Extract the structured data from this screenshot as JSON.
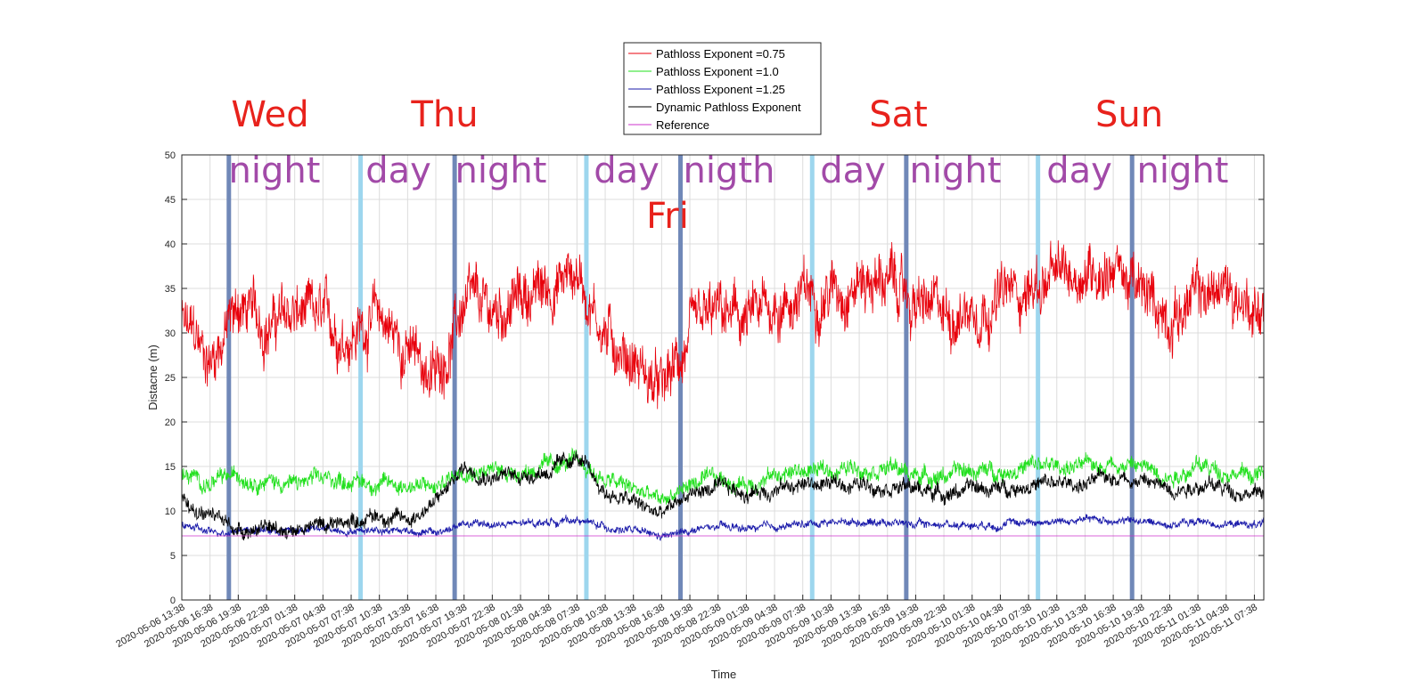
{
  "chart_data": {
    "type": "line",
    "xlabel": "Time",
    "ylabel": "Distacne (m)",
    "ylim": [
      0,
      50
    ],
    "yticks": [
      0,
      5,
      10,
      15,
      20,
      25,
      30,
      35,
      40,
      45,
      50
    ],
    "grid": true,
    "legend_placement": "top-center",
    "x_tick_labels": [
      "2020-05-06  13:38",
      "2020-05-06  16:38",
      "2020-05-06  19:38",
      "2020-05-06  22:38",
      "2020-05-07  01:38",
      "2020-05-07  04:38",
      "2020-05-07  07:38",
      "2020-05-07  10:38",
      "2020-05-07  13:38",
      "2020-05-07  16:38",
      "2020-05-07  19:38",
      "2020-05-07  22:38",
      "2020-05-08  01:38",
      "2020-05-08  04:38",
      "2020-05-08  07:38",
      "2020-05-08  10:38",
      "2020-05-08  13:38",
      "2020-05-08  16:38",
      "2020-05-08  19:38",
      "2020-05-08  22:38",
      "2020-05-09  01:38",
      "2020-05-09  04:38",
      "2020-05-09  07:38",
      "2020-05-09  10:38",
      "2020-05-09  13:38",
      "2020-05-09  16:38",
      "2020-05-09  19:38",
      "2020-05-09  22:38",
      "2020-05-10  01:38",
      "2020-05-10  04:38",
      "2020-05-10  07:38",
      "2020-05-10  10:38",
      "2020-05-10  13:38",
      "2020-05-10  16:38",
      "2020-05-10  19:38",
      "2020-05-10  22:38",
      "2020-05-11  01:38",
      "2020-05-11  04:38",
      "2020-05-11  07:38"
    ],
    "x_hours_labels": [
      "2020-05-06  13:38",
      "2020-05-06  16:38",
      "2020-05-06  19:38",
      "2020-05-06  22:38",
      "2020-05-07  01:38",
      "2020-05-07  04:38",
      "2020-05-07  07:38",
      "2020-05-07  10:38",
      "2020-05-07  13:38",
      "2020-05-07  16:38",
      "2020-05-07  19:38",
      "2020-05-07  22:38",
      "2020-05-08  01:38",
      "2020-05-08  04:38",
      "2020-05-08  07:38",
      "2020-05-08  10:38",
      "2020-05-08  13:38",
      "2020-05-08  16:38",
      "2020-05-08  19:38",
      "2020-05-08  22:38",
      "2020-05-09  01:38",
      "2020-05-09  04:38",
      "2020-05-09  07:38",
      "2020-05-09  10:38",
      "2020-05-09  13:38",
      "2020-05-09  16:38",
      "2020-05-09  19:38",
      "2020-05-09  22:38",
      "2020-05-10  01:38",
      "2020-05-10  04:38",
      "2020-05-10  07:38",
      "2020-05-10  10:38",
      "2020-05-10  13:38",
      "2020-05-10  16:38",
      "2020-05-10  19:38",
      "2020-05-10  22:38",
      "2020-05-11  01:38",
      "2020-05-11  04:38",
      "2020-05-11  07:38"
    ],
    "x_range": [
      "2020-05-06 13:38",
      "2020-05-11 08:38"
    ],
    "series": [
      {
        "name": "Pathloss Exponent =0.75",
        "color": "#e8000b",
        "x": [
          "2020-05-06 13:38",
          "2020-05-06 16:38",
          "2020-05-06 19:38",
          "2020-05-06 22:38",
          "2020-05-07 01:38",
          "2020-05-07 04:38",
          "2020-05-07 07:38",
          "2020-05-07 10:38",
          "2020-05-07 13:38",
          "2020-05-07 16:38",
          "2020-05-07 19:38",
          "2020-05-07 22:38",
          "2020-05-08 01:38",
          "2020-05-08 04:38",
          "2020-05-08 07:38",
          "2020-05-08 10:38",
          "2020-05-08 13:38",
          "2020-05-08 16:38",
          "2020-05-08 19:38",
          "2020-05-08 22:38",
          "2020-05-09 01:38",
          "2020-05-09 04:38",
          "2020-05-09 07:38",
          "2020-05-09 10:38",
          "2020-05-09 13:38",
          "2020-05-09 16:38",
          "2020-05-09 19:38",
          "2020-05-09 22:38",
          "2020-05-10 01:38",
          "2020-05-10 04:38",
          "2020-05-10 07:38",
          "2020-05-10 10:38",
          "2020-05-10 13:38",
          "2020-05-10 16:38",
          "2020-05-10 19:38",
          "2020-05-10 22:38",
          "2020-05-11 01:38",
          "2020-05-11 04:38",
          "2020-05-11 07:38"
        ],
        "values": [
          31,
          27,
          33,
          31,
          32,
          31,
          30,
          32,
          28,
          25,
          33,
          32,
          34,
          35,
          37,
          30,
          27,
          23,
          29,
          32,
          31,
          33,
          34,
          35,
          36,
          36,
          33,
          32,
          33,
          34,
          35,
          36,
          37,
          38,
          34,
          32,
          34,
          35,
          33
        ]
      },
      {
        "name": "Pathloss Exponent =1.0",
        "color": "#22e01e",
        "x": [
          "2020-05-06 13:38",
          "2020-05-06 16:38",
          "2020-05-06 19:38",
          "2020-05-06 22:38",
          "2020-05-07 01:38",
          "2020-05-07 04:38",
          "2020-05-07 07:38",
          "2020-05-07 10:38",
          "2020-05-07 13:38",
          "2020-05-07 16:38",
          "2020-05-07 19:38",
          "2020-05-07 22:38",
          "2020-05-08 01:38",
          "2020-05-08 04:38",
          "2020-05-08 07:38",
          "2020-05-08 10:38",
          "2020-05-08 13:38",
          "2020-05-08 16:38",
          "2020-05-08 19:38",
          "2020-05-08 22:38",
          "2020-05-09 01:38",
          "2020-05-09 04:38",
          "2020-05-09 07:38",
          "2020-05-09 10:38",
          "2020-05-09 13:38",
          "2020-05-09 16:38",
          "2020-05-09 19:38",
          "2020-05-09 22:38",
          "2020-05-10 01:38",
          "2020-05-10 04:38",
          "2020-05-10 07:38",
          "2020-05-10 10:38",
          "2020-05-10 13:38",
          "2020-05-10 16:38",
          "2020-05-10 19:38",
          "2020-05-10 22:38",
          "2020-05-11 01:38",
          "2020-05-11 04:38",
          "2020-05-11 07:38"
        ],
        "values": [
          14,
          13,
          14,
          13.5,
          13,
          13.5,
          13.5,
          13,
          13,
          12.5,
          15,
          14.5,
          14.5,
          15,
          15.5,
          13.5,
          12.5,
          11,
          13,
          13.5,
          13,
          14,
          14.5,
          14.5,
          15,
          15,
          14,
          14,
          14.5,
          14.5,
          15,
          15,
          15,
          15.5,
          15,
          14,
          15,
          14.5,
          14
        ]
      },
      {
        "name": "Pathloss Exponent =1.25",
        "color": "#1a1aaa",
        "x": [
          "2020-05-06 13:38",
          "2020-05-06 16:38",
          "2020-05-06 19:38",
          "2020-05-06 22:38",
          "2020-05-07 01:38",
          "2020-05-07 04:38",
          "2020-05-07 07:38",
          "2020-05-07 10:38",
          "2020-05-07 13:38",
          "2020-05-07 16:38",
          "2020-05-07 19:38",
          "2020-05-07 22:38",
          "2020-05-08 01:38",
          "2020-05-08 04:38",
          "2020-05-08 07:38",
          "2020-05-08 10:38",
          "2020-05-08 13:38",
          "2020-05-08 16:38",
          "2020-05-08 19:38",
          "2020-05-08 22:38",
          "2020-05-09 01:38",
          "2020-05-09 04:38",
          "2020-05-09 07:38",
          "2020-05-09 10:38",
          "2020-05-09 13:38",
          "2020-05-09 16:38",
          "2020-05-09 19:38",
          "2020-05-09 22:38",
          "2020-05-10 01:38",
          "2020-05-10 04:38",
          "2020-05-10 07:38",
          "2020-05-10 10:38",
          "2020-05-10 13:38",
          "2020-05-10 16:38",
          "2020-05-10 19:38",
          "2020-05-10 22:38",
          "2020-05-11 01:38",
          "2020-05-11 04:38",
          "2020-05-11 07:38"
        ],
        "values": [
          8.5,
          7.5,
          8,
          7.8,
          7.8,
          8,
          7.8,
          8,
          7.8,
          7.5,
          8.5,
          8.5,
          8.5,
          8.8,
          9,
          8.2,
          7.8,
          7,
          7.8,
          8.2,
          8,
          8.2,
          8.5,
          8.8,
          8.8,
          8.8,
          8.5,
          8.5,
          8.5,
          8.5,
          8.8,
          8.8,
          9,
          9,
          8.8,
          8.5,
          8.8,
          8.5,
          8.5
        ]
      },
      {
        "name": "Dynamic Pathloss Exponent",
        "color": "#000000",
        "x": [
          "2020-05-06 13:38",
          "2020-05-06 16:38",
          "2020-05-06 19:38",
          "2020-05-06 22:38",
          "2020-05-07 01:38",
          "2020-05-07 04:38",
          "2020-05-07 07:38",
          "2020-05-07 10:38",
          "2020-05-07 13:38",
          "2020-05-07 16:38",
          "2020-05-07 19:38",
          "2020-05-07 22:38",
          "2020-05-08 01:38",
          "2020-05-08 04:38",
          "2020-05-08 07:38",
          "2020-05-08 10:38",
          "2020-05-08 13:38",
          "2020-05-08 16:38",
          "2020-05-08 19:38",
          "2020-05-08 22:38",
          "2020-05-09 01:38",
          "2020-05-09 04:38",
          "2020-05-09 07:38",
          "2020-05-09 10:38",
          "2020-05-09 13:38",
          "2020-05-09 16:38",
          "2020-05-09 19:38",
          "2020-05-09 22:38",
          "2020-05-10 01:38",
          "2020-05-10 04:38",
          "2020-05-10 07:38",
          "2020-05-10 10:38",
          "2020-05-10 13:38",
          "2020-05-10 16:38",
          "2020-05-10 19:38",
          "2020-05-10 22:38",
          "2020-05-11 01:38",
          "2020-05-11 04:38",
          "2020-05-11 07:38"
        ],
        "values": [
          11,
          9.5,
          8,
          8,
          8,
          8.5,
          9,
          9.5,
          9,
          11,
          15,
          14,
          14,
          14.5,
          16,
          12,
          11,
          9.5,
          12,
          12.5,
          12,
          12.5,
          13,
          13,
          13,
          13,
          12.5,
          12,
          12.5,
          12.5,
          13,
          13,
          13,
          14,
          13.5,
          12.5,
          13,
          12.5,
          12
        ]
      },
      {
        "name": "Reference",
        "color": "#cc33cc",
        "x": [
          "2020-05-06 13:38",
          "2020-05-11 08:38"
        ],
        "values": [
          7.2,
          7.2
        ]
      }
    ],
    "annotations": {
      "days": [
        "Wed",
        "Thu",
        "Fri",
        "Sat",
        "Sun"
      ],
      "phases": [
        "night",
        "day",
        "night",
        "day",
        "nigth",
        "day",
        "night",
        "day",
        "night"
      ]
    },
    "dividers": [
      {
        "x": "2020-05-06 18:38",
        "kind": "night-start",
        "color": "#7088b8"
      },
      {
        "x": "2020-05-07 08:38",
        "kind": "day-start",
        "color": "#9dd6ee"
      },
      {
        "x": "2020-05-07 18:38",
        "kind": "night-start",
        "color": "#7088b8"
      },
      {
        "x": "2020-05-08 08:38",
        "kind": "day-start",
        "color": "#9dd6ee"
      },
      {
        "x": "2020-05-08 18:38",
        "kind": "night-start",
        "color": "#7088b8"
      },
      {
        "x": "2020-05-09 08:38",
        "kind": "day-start",
        "color": "#9dd6ee"
      },
      {
        "x": "2020-05-09 18:38",
        "kind": "night-start",
        "color": "#7088b8"
      },
      {
        "x": "2020-05-10 08:38",
        "kind": "day-start",
        "color": "#9dd6ee"
      },
      {
        "x": "2020-05-10 18:38",
        "kind": "night-start",
        "color": "#7088b8"
      }
    ]
  }
}
